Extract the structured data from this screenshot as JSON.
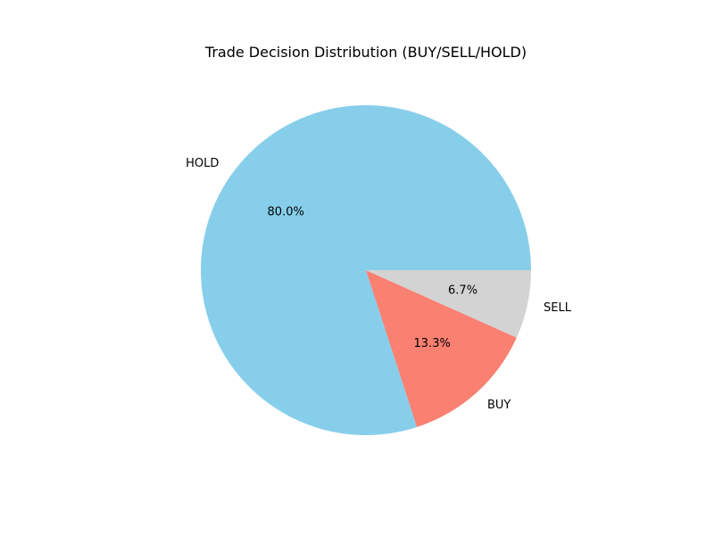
{
  "chart_data": {
    "type": "pie",
    "title": "Trade Decision Distribution (BUY/SELL/HOLD)",
    "start_angle_deg": 0,
    "direction": "counterclockwise",
    "slices": [
      {
        "label": "HOLD",
        "value": 80.0,
        "pct_label": "80.0%",
        "color": "#87ceeb"
      },
      {
        "label": "BUY",
        "value": 13.3,
        "pct_label": "13.3%",
        "color": "#fa8072"
      },
      {
        "label": "SELL",
        "value": 6.7,
        "pct_label": "6.7%",
        "color": "#d3d3d3"
      }
    ]
  }
}
